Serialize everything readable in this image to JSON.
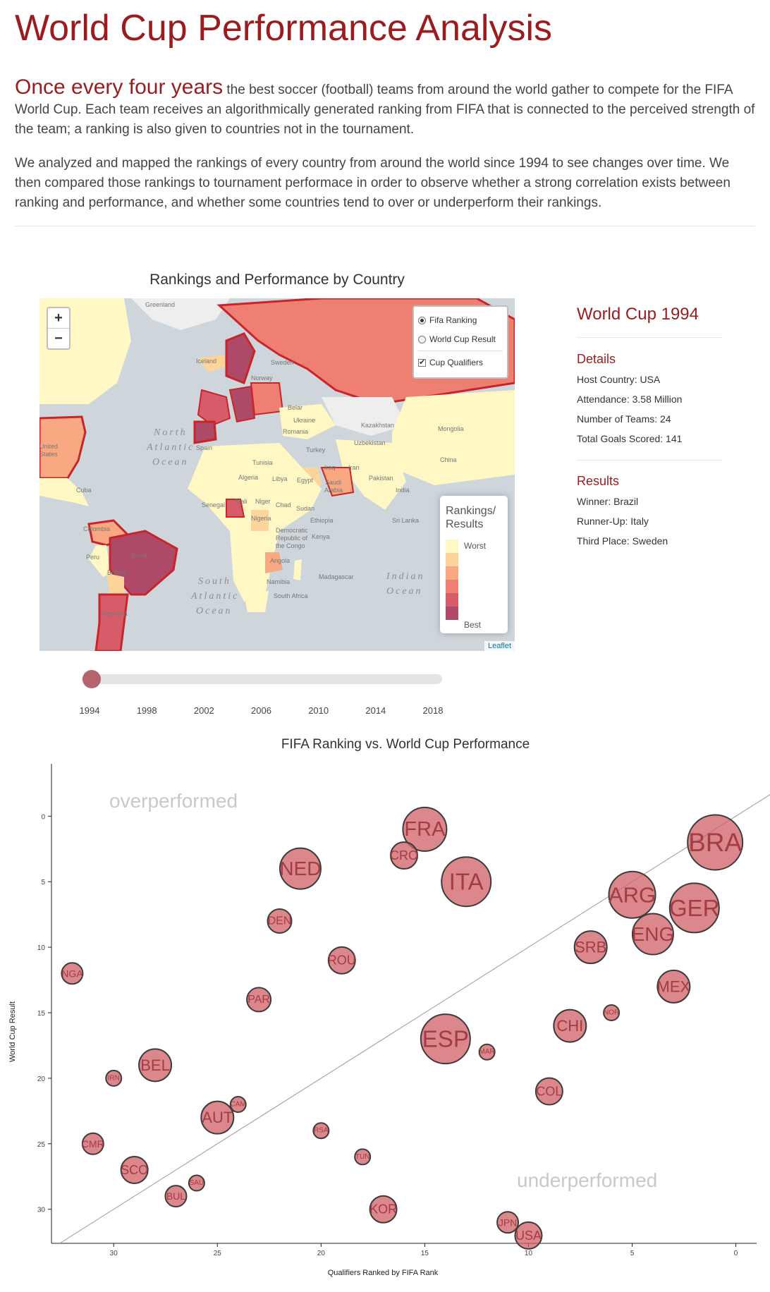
{
  "header": {
    "title": "World Cup Performance Analysis",
    "intro_lead": "Once every four years",
    "intro_rest": "the best soccer (football) teams from around the world gather to compete for the FIFA World Cup. Each team receives an algorithmically generated ranking from FIFA that is connected to the perceived strength of the team; a ranking is also given to countries not in the tournament.",
    "intro_2": "We analyzed and mapped the rankings of every country from around the world since 1994 to see changes over time. We then compared those rankings to tournament performace in order to observe whether a strong correlation exists between ranking and performance, and whether some countries tend to over or underperform their rankings."
  },
  "map": {
    "title": "Rankings and Performance by Country",
    "zoom_in": "+",
    "zoom_out": "−",
    "layers": {
      "fifa_ranking": "Fifa Ranking",
      "world_cup_result": "World Cup Result",
      "cup_qualifiers": "Cup Qualifiers",
      "selected": "fifa_ranking",
      "qualifiers_checked": true,
      "check_mark": "✔"
    },
    "legend": {
      "title_line1": "Rankings/",
      "title_line2": "Results",
      "worst": "Worst",
      "best": "Best",
      "colors": [
        "#fff7c4",
        "#fdd59b",
        "#f9a982",
        "#f07f73",
        "#d65c6a",
        "#ae4a68"
      ]
    },
    "attribution": "Leaflet",
    "labels": {
      "greenland": "Greenland",
      "iceland": "Iceland",
      "north_atlantic": [
        "North",
        "Atlantic",
        "Ocean"
      ],
      "south_atlantic": [
        "South",
        "Atlantic",
        "Ocean"
      ],
      "indian": [
        "Indian",
        "Ocean"
      ],
      "united_states": [
        "United",
        "States"
      ],
      "cuba": "Cuba",
      "colombia": "Colombia",
      "peru": "Peru",
      "brazil": "Brazil",
      "bolivia": "Bolivia",
      "argentina": "Argentina",
      "sweden": "Sweden",
      "norway": "Norway",
      "belarus": "Belar",
      "ukraine": "Ukraine",
      "romania": "Romania",
      "turkey": "Turkey",
      "kazakhstan": "Kazakhstan",
      "uzbekistan": "Uzbekistan",
      "mongolia": "Mongolia",
      "china": "China",
      "iran": "Iran",
      "iraq": "Iraq",
      "pakistan": "Pakistan",
      "india": "India",
      "sri_lanka": "Sri Lanka",
      "spain": "Spain",
      "algeria": "Algeria",
      "libya": "Libya",
      "egypt": "Egypt",
      "tunisia": "Tunisia",
      "saudi_arabia": [
        "Saudi",
        "Arabia"
      ],
      "mali": "Mali",
      "niger": "Niger",
      "chad": "Chad",
      "sudan": "Sudan",
      "ethiopia": "Ethiopia",
      "senegal": "Senegal",
      "nigeria": "Nigeria",
      "kenya": "Kenya",
      "drc": [
        "Democratic",
        "Republic of",
        "the Congo"
      ],
      "angola": "Angola",
      "namibia": "Namibia",
      "south_africa": "South Africa",
      "madagascar": "Madagascar"
    }
  },
  "sidebar": {
    "title": "World Cup 1994",
    "details_heading": "Details",
    "host": "Host Country: USA",
    "attendance": "Attendance: 3.58 Million",
    "teams": "Number of Teams: 24",
    "goals": "Total Goals Scored: 141",
    "results_heading": "Results",
    "winner": "Winner: Brazil",
    "runner_up": "Runner-Up: Italy",
    "third": "Third Place: Sweden"
  },
  "slider": {
    "years": [
      "1994",
      "1998",
      "2002",
      "2006",
      "2010",
      "2014",
      "2018"
    ],
    "value": 1994
  },
  "chart_data": {
    "type": "scatter",
    "title": "FIFA Ranking vs. World Cup Performance",
    "xlabel": "Qualifiers Ranked by FIFA Rank",
    "ylabel": "World Cup Result",
    "xlim": [
      33,
      -1
    ],
    "ylim": [
      -4,
      32.6
    ],
    "x_reversed": true,
    "y_reversed": true,
    "x_ticks": [
      30,
      25,
      20,
      15,
      10,
      5,
      0
    ],
    "y_ticks": [
      0,
      5,
      10,
      15,
      20,
      25,
      30
    ],
    "annotations": {
      "top_left": "overperformed",
      "bottom_right": "underperformed"
    },
    "reference_line": "diagonal",
    "points": [
      {
        "label": "BRA",
        "x": 1,
        "y": 2,
        "size": 39
      },
      {
        "label": "GER",
        "x": 2,
        "y": 7,
        "size": 35
      },
      {
        "label": "ARG",
        "x": 5,
        "y": 6,
        "size": 33
      },
      {
        "label": "ENG",
        "x": 4,
        "y": 9,
        "size": 29
      },
      {
        "label": "MEX",
        "x": 3,
        "y": 13,
        "size": 23
      },
      {
        "label": "NOR",
        "x": 6,
        "y": 15,
        "size": 11
      },
      {
        "label": "SRB",
        "x": 7,
        "y": 10,
        "size": 23
      },
      {
        "label": "CHI",
        "x": 8,
        "y": 16,
        "size": 23
      },
      {
        "label": "COL",
        "x": 9,
        "y": 21,
        "size": 19
      },
      {
        "label": "JPN",
        "x": 11,
        "y": 31,
        "size": 15
      },
      {
        "label": "USA",
        "x": 10,
        "y": 32,
        "size": 19
      },
      {
        "label": "MAR",
        "x": 12,
        "y": 18,
        "size": 11
      },
      {
        "label": "ITA",
        "x": 13,
        "y": 5,
        "size": 35
      },
      {
        "label": "ESP",
        "x": 14,
        "y": 17,
        "size": 35
      },
      {
        "label": "FRA",
        "x": 15,
        "y": 1,
        "size": 31
      },
      {
        "label": "CRO",
        "x": 16,
        "y": 3,
        "size": 19
      },
      {
        "label": "KOR",
        "x": 17,
        "y": 30,
        "size": 19
      },
      {
        "label": "TUN",
        "x": 18,
        "y": 26,
        "size": 11
      },
      {
        "label": "ROU",
        "x": 19,
        "y": 11,
        "size": 19
      },
      {
        "label": "RSA",
        "x": 20,
        "y": 24,
        "size": 11
      },
      {
        "label": "NED",
        "x": 21,
        "y": 4,
        "size": 29
      },
      {
        "label": "DEN",
        "x": 22,
        "y": 8,
        "size": 17
      },
      {
        "label": "PAR",
        "x": 23,
        "y": 14,
        "size": 17
      },
      {
        "label": "CAM",
        "x": 24,
        "y": 22,
        "size": 11
      },
      {
        "label": "AUT",
        "x": 25,
        "y": 23,
        "size": 23
      },
      {
        "label": "SAU",
        "x": 26,
        "y": 28,
        "size": 11
      },
      {
        "label": "BUL",
        "x": 27,
        "y": 29,
        "size": 15
      },
      {
        "label": "BEL",
        "x": 28,
        "y": 19,
        "size": 23
      },
      {
        "label": "SCO",
        "x": 29,
        "y": 27,
        "size": 19
      },
      {
        "label": "IRN",
        "x": 30,
        "y": 20,
        "size": 11
      },
      {
        "label": "CMR",
        "x": 31,
        "y": 25,
        "size": 15
      },
      {
        "label": "NGA",
        "x": 32,
        "y": 12,
        "size": 15
      }
    ]
  }
}
